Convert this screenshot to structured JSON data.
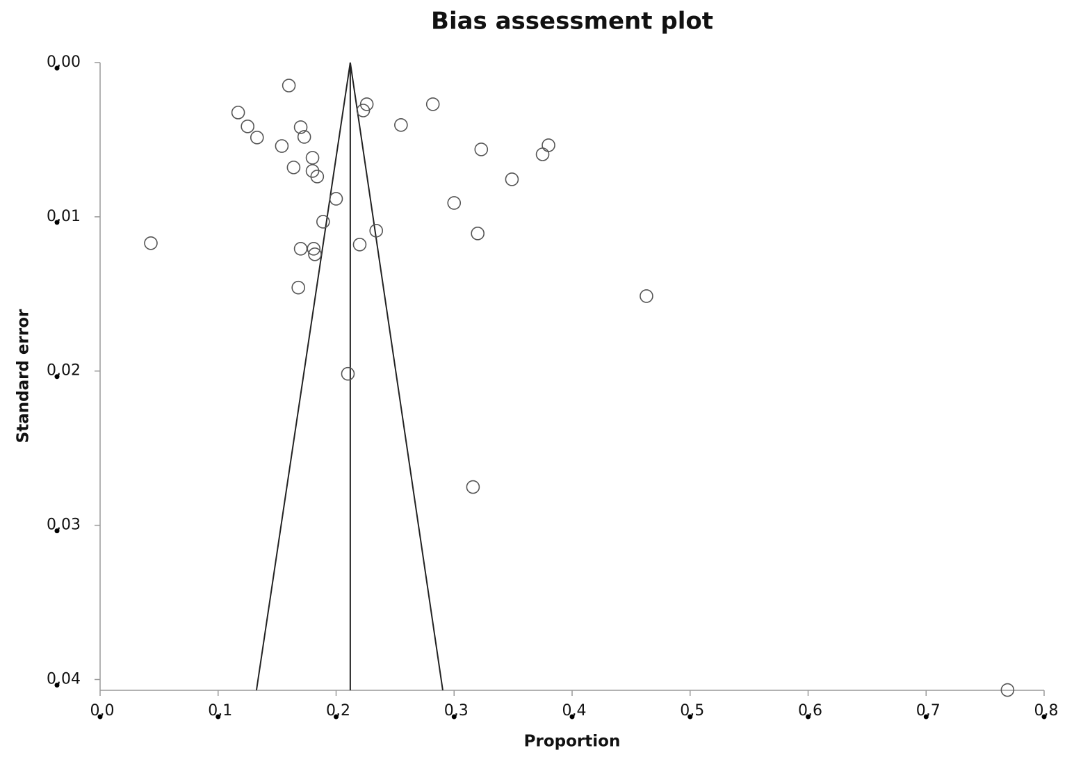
{
  "chart_data": {
    "type": "scatter",
    "title": "Bias assessment plot",
    "x_label": "Proportion",
    "y_label": "Standard error",
    "xlim": [
      0,
      0.8
    ],
    "ylim": [
      0,
      0.0407
    ],
    "y_reversed": true,
    "xticks": [
      {
        "value": 0,
        "label": "0,0"
      },
      {
        "value": 0.1,
        "label": "0,1"
      },
      {
        "value": 0.2,
        "label": "0,2"
      },
      {
        "value": 0.3,
        "label": "0,3"
      },
      {
        "value": 0.4,
        "label": "0,4"
      },
      {
        "value": 0.5,
        "label": "0,5"
      },
      {
        "value": 0.6,
        "label": "0,6"
      },
      {
        "value": 0.7,
        "label": "0,7"
      },
      {
        "value": 0.8,
        "label": "0,8"
      }
    ],
    "yticks": [
      {
        "value": 0,
        "label": "0,00"
      },
      {
        "value": 0.01,
        "label": "0,01"
      },
      {
        "value": 0.02,
        "label": "0,02"
      },
      {
        "value": 0.03,
        "label": "0,03"
      },
      {
        "value": 0.04,
        "label": "0,04"
      }
    ],
    "grid": false,
    "marker_color": "#555555",
    "line_color": "#222222",
    "x": [
      0.16,
      0.117,
      0.125,
      0.133,
      0.154,
      0.17,
      0.173,
      0.18,
      0.164,
      0.18,
      0.184,
      0.226,
      0.223,
      0.255,
      0.282,
      0.323,
      0.38,
      0.375,
      0.349,
      0.2,
      0.3,
      0.189,
      0.234,
      0.32,
      0.043,
      0.17,
      0.181,
      0.182,
      0.22,
      0.168,
      0.463,
      0.21,
      0.316,
      0.769
    ],
    "values": [
      0.00149,
      0.00324,
      0.00414,
      0.00486,
      0.00541,
      0.00419,
      0.00482,
      0.00617,
      0.0068,
      0.00703,
      0.00739,
      0.0027,
      0.00311,
      0.00405,
      0.0027,
      0.00563,
      0.00536,
      0.00595,
      0.00757,
      0.00883,
      0.0091,
      0.01032,
      0.0109,
      0.01108,
      0.01171,
      0.01207,
      0.01207,
      0.01243,
      0.0118,
      0.01459,
      0.01514,
      0.02018,
      0.02752,
      0.04068
    ],
    "lines": [
      {
        "x": [
          0.1325,
          0.212,
          0.2904
        ],
        "y": [
          0.0407,
          0,
          0.0407
        ]
      },
      {
        "x": [
          0.212,
          0.212
        ],
        "y": [
          0,
          0.0407
        ]
      }
    ]
  }
}
